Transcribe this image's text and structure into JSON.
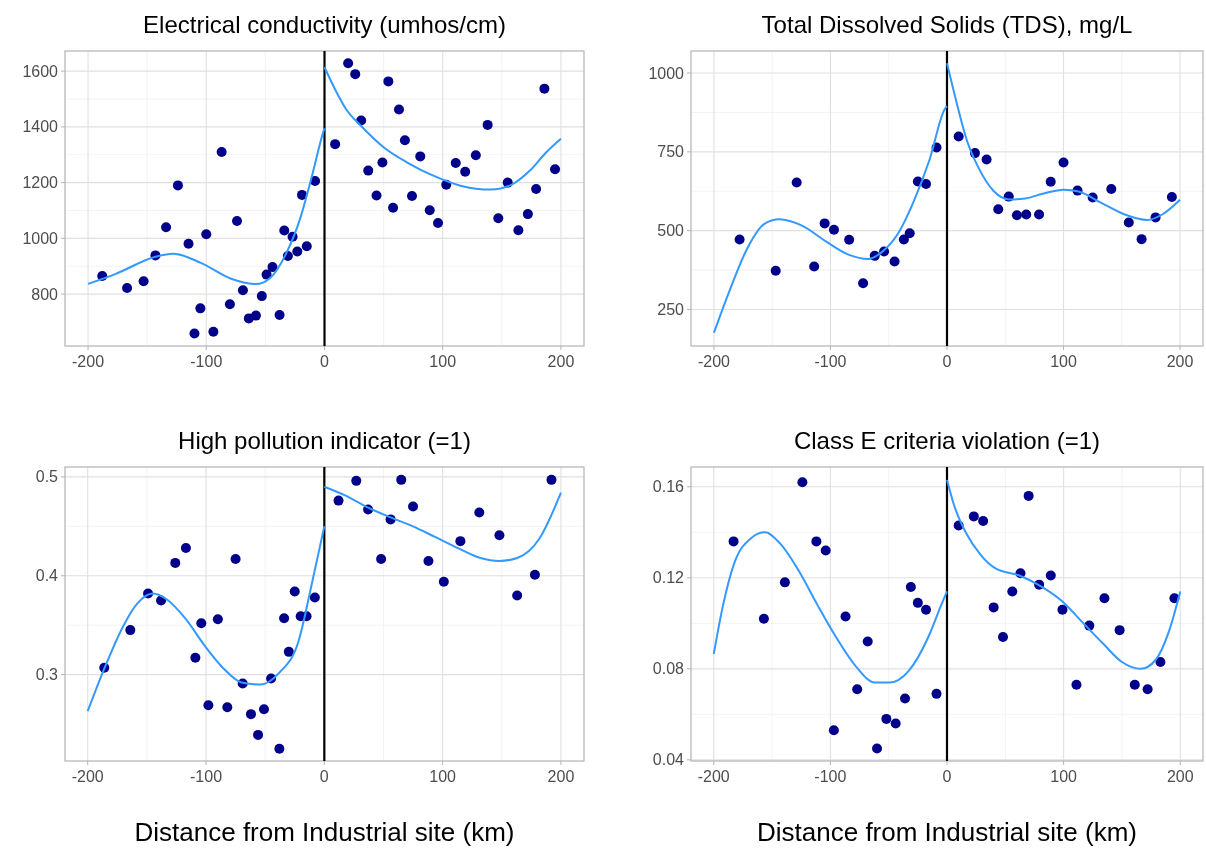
{
  "chart_data": [
    {
      "type": "scatter",
      "title": "Electrical conductivity (umhos/cm)",
      "xlim": [
        -219.5,
        219.5
      ],
      "xticks": [
        -200,
        -100,
        0,
        100,
        200
      ],
      "ylim": [
        614,
        1672
      ],
      "yticks": [
        800,
        1000,
        1200,
        1400,
        1600
      ],
      "grid": true,
      "ref_lines": [
        {
          "axis": "x",
          "value": 0,
          "color": "#000000"
        }
      ],
      "series": [
        {
          "type": "scatter",
          "color": "#00008b",
          "x": [
            -188,
            -167,
            -153,
            -143,
            -134,
            -124,
            -115,
            -110,
            -105,
            -100,
            -94,
            -87,
            -80,
            -74,
            -69,
            -64,
            -58,
            -53,
            -49,
            -44,
            -38,
            -34,
            -31,
            -27,
            -23,
            -19,
            -15,
            -8,
            9,
            20,
            26,
            31,
            37,
            44,
            49,
            54,
            58,
            63,
            68,
            74,
            81,
            89,
            96,
            103,
            111,
            119,
            128,
            138,
            147,
            155,
            164,
            172,
            179,
            186,
            195
          ],
          "values": [
            865,
            822,
            846,
            939,
            1040,
            1190,
            981,
            659,
            749,
            1015,
            665,
            1310,
            764,
            1062,
            814,
            713,
            723,
            793,
            870,
            897,
            725,
            1028,
            937,
            1006,
            953,
            1156,
            972,
            1206,
            1338,
            1628,
            1589,
            1423,
            1243,
            1154,
            1272,
            1563,
            1110,
            1462,
            1352,
            1152,
            1294,
            1101,
            1055,
            1192,
            1270,
            1239,
            1298,
            1407,
            1072,
            1200,
            1029,
            1087,
            1177,
            1537,
            1248
          ]
        },
        {
          "type": "line",
          "color": "#3399ff",
          "x": [
            -200,
            -177,
            -143,
            -128,
            -105,
            -79,
            -58,
            -46,
            -33,
            -20,
            -11,
            -1,
            0
          ],
          "values": [
            837,
            872,
            934,
            945,
            913,
            855,
            836,
            858,
            941,
            1079,
            1217,
            1382,
            1395
          ]
        },
        {
          "type": "line",
          "color": "#3399ff",
          "x": [
            0,
            9,
            18,
            31,
            50,
            70,
            93,
            115,
            141,
            158,
            174,
            187,
            200
          ],
          "values": [
            1614,
            1534,
            1465,
            1403,
            1327,
            1272,
            1223,
            1189,
            1175,
            1192,
            1244,
            1306,
            1357
          ]
        }
      ]
    },
    {
      "type": "scatter",
      "title": "Total Dissolved Solids (TDS), mg/L",
      "xlim": [
        -219.7,
        219.7
      ],
      "xticks": [
        -200,
        -100,
        0,
        100,
        200
      ],
      "ylim": [
        134,
        1070
      ],
      "yticks": [
        250,
        500,
        750,
        1000
      ],
      "grid": true,
      "ref_lines": [
        {
          "axis": "x",
          "value": 0,
          "color": "#000000"
        }
      ],
      "series": [
        {
          "type": "scatter",
          "color": "#00008b",
          "x": [
            -178,
            -147,
            -129,
            -114,
            -105,
            -97,
            -84,
            -72,
            -62,
            -54,
            -45,
            -37,
            -32,
            -25,
            -18,
            -9,
            10,
            24,
            34,
            44,
            53,
            60,
            68,
            79,
            89,
            100,
            112,
            125,
            141,
            156,
            167,
            179,
            193
          ],
          "values": [
            472,
            373,
            653,
            386,
            523,
            503,
            471,
            333,
            420,
            434,
            402,
            472,
            492,
            656,
            648,
            764,
            799,
            746,
            726,
            568,
            608,
            549,
            551,
            551,
            655,
            716,
            627,
            605,
            632,
            526,
            473,
            542,
            607
          ]
        },
        {
          "type": "line",
          "color": "#3399ff",
          "x": [
            -200,
            -187,
            -170,
            -157,
            -144,
            -124,
            -104,
            -84,
            -68,
            -55,
            -42,
            -29,
            -15,
            -2,
            0
          ],
          "values": [
            176,
            306,
            454,
            521,
            536,
            515,
            466,
            423,
            410,
            435,
            491,
            589,
            725,
            885,
            895
          ]
        },
        {
          "type": "line",
          "color": "#3399ff",
          "x": [
            0,
            8,
            17,
            27,
            40,
            54,
            67,
            83,
            100,
            113,
            132,
            152,
            172,
            185,
            200
          ],
          "values": [
            1031,
            910,
            787,
            700,
            626,
            599,
            602,
            618,
            630,
            624,
            589,
            552,
            534,
            552,
            598
          ]
        }
      ]
    },
    {
      "type": "scatter",
      "title": "High pollution indicator (=1)",
      "xlabel": "Distance from Industrial site (km)",
      "xlim": [
        -219.2,
        219.5
      ],
      "xticks": [
        -200,
        -100,
        0,
        100,
        200
      ],
      "ylim": [
        0.2126,
        0.51
      ],
      "yticks": [
        0.3,
        0.4,
        0.5
      ],
      "grid": true,
      "ref_lines": [
        {
          "axis": "x",
          "value": 0,
          "color": "#000000"
        }
      ],
      "series": [
        {
          "type": "scatter",
          "color": "#00008b",
          "x": [
            -186,
            -164,
            -149,
            -138,
            -126,
            -117,
            -109,
            -104,
            -98,
            -90,
            -82,
            -75,
            -69,
            -62,
            -56,
            -51,
            -45,
            -38,
            -34,
            -30,
            -25,
            -20,
            -15,
            -8,
            12,
            27,
            37,
            48,
            56,
            65,
            75,
            88,
            101,
            115,
            131,
            148,
            163,
            178,
            192
          ],
          "values": [
            0.307,
            0.345,
            0.382,
            0.375,
            0.413,
            0.428,
            0.317,
            0.352,
            0.269,
            0.356,
            0.267,
            0.417,
            0.291,
            0.26,
            0.239,
            0.265,
            0.296,
            0.225,
            0.357,
            0.323,
            0.384,
            0.359,
            0.359,
            0.378,
            0.476,
            0.496,
            0.467,
            0.417,
            0.457,
            0.497,
            0.47,
            0.415,
            0.394,
            0.435,
            0.464,
            0.441,
            0.38,
            0.401,
            0.497
          ]
        },
        {
          "type": "line",
          "color": "#3399ff",
          "x": [
            -200,
            -186,
            -170,
            -158,
            -145,
            -133,
            -117,
            -101,
            -85,
            -70,
            -54,
            -38,
            -22,
            -10,
            0
          ],
          "values": [
            0.263,
            0.306,
            0.349,
            0.372,
            0.382,
            0.376,
            0.356,
            0.329,
            0.306,
            0.292,
            0.29,
            0.302,
            0.333,
            0.395,
            0.45
          ]
        },
        {
          "type": "line",
          "color": "#3399ff",
          "x": [
            0,
            18,
            37,
            56,
            75,
            94,
            113,
            132,
            148,
            163,
            182,
            200
          ],
          "values": [
            0.49,
            0.481,
            0.469,
            0.459,
            0.45,
            0.439,
            0.428,
            0.418,
            0.415,
            0.418,
            0.438,
            0.484
          ]
        }
      ]
    },
    {
      "type": "scatter",
      "title": "Class E criteria violation (=1)",
      "xlabel": "Distance from Industrial site (km)",
      "xlim": [
        -219.5,
        219.5
      ],
      "xticks": [
        -200,
        -100,
        0,
        100,
        200
      ],
      "ylim": [
        0.0395,
        0.1687
      ],
      "yticks": [
        0.04,
        0.08,
        0.12,
        0.16
      ],
      "grid": true,
      "ref_lines": [
        {
          "axis": "x",
          "value": 0,
          "color": "#000000"
        }
      ],
      "series": [
        {
          "type": "scatter",
          "color": "#00008b",
          "x": [
            -183,
            -157,
            -139,
            -124,
            -112,
            -104,
            -97,
            -87,
            -77,
            -68,
            -60,
            -52,
            -44,
            -36,
            -31,
            -25,
            -18,
            -9,
            10,
            23,
            31,
            40,
            48,
            56,
            63,
            70,
            79,
            89,
            99,
            111,
            122,
            135,
            148,
            161,
            172,
            183,
            195
          ],
          "values": [
            0.136,
            0.102,
            0.118,
            0.162,
            0.136,
            0.132,
            0.053,
            0.103,
            0.071,
            0.092,
            0.045,
            0.058,
            0.056,
            0.067,
            0.116,
            0.109,
            0.106,
            0.069,
            0.143,
            0.147,
            0.145,
            0.107,
            0.094,
            0.114,
            0.122,
            0.156,
            0.117,
            0.121,
            0.106,
            0.073,
            0.099,
            0.111,
            0.097,
            0.073,
            0.071,
            0.083,
            0.111
          ]
        },
        {
          "type": "line",
          "color": "#3399ff",
          "x": [
            -200,
            -192,
            -182,
            -169,
            -156,
            -143,
            -127,
            -111,
            -94,
            -78,
            -62,
            -49,
            -33,
            -16,
            -5,
            0
          ],
          "values": [
            0.0865,
            0.108,
            0.127,
            0.137,
            0.14,
            0.135,
            0.123,
            0.108,
            0.093,
            0.081,
            0.074,
            0.074,
            0.079,
            0.094,
            0.108,
            0.114
          ]
        },
        {
          "type": "line",
          "color": "#3399ff",
          "x": [
            0,
            6,
            16,
            29,
            42,
            62,
            78,
            98,
            117,
            134,
            150,
            166,
            179,
            190,
            200
          ],
          "values": [
            0.163,
            0.152,
            0.14,
            0.13,
            0.124,
            0.121,
            0.117,
            0.11,
            0.1,
            0.091,
            0.083,
            0.08,
            0.084,
            0.096,
            0.114
          ]
        }
      ]
    }
  ]
}
